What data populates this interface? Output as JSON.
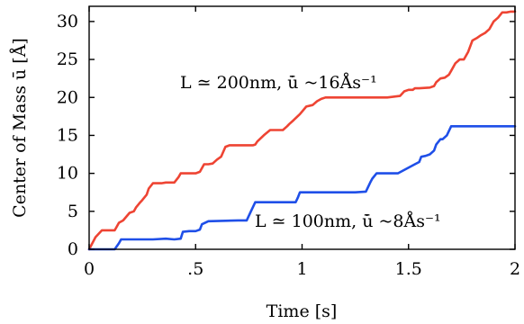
{
  "chart_data": {
    "type": "line",
    "xlabel": "Time [s]",
    "ylabel": "Center of Mass ū [Å]",
    "xlim": [
      0,
      2
    ],
    "ylim": [
      0,
      32
    ],
    "xticks": [
      {
        "value": 0,
        "label": "0"
      },
      {
        "value": 0.5,
        "label": ".5"
      },
      {
        "value": 1,
        "label": "1"
      },
      {
        "value": 1.5,
        "label": "1.5"
      },
      {
        "value": 2,
        "label": "2"
      }
    ],
    "yticks": [
      {
        "value": 0,
        "label": "0"
      },
      {
        "value": 5,
        "label": "5"
      },
      {
        "value": 10,
        "label": "10"
      },
      {
        "value": 15,
        "label": "15"
      },
      {
        "value": 20,
        "label": "20"
      },
      {
        "value": 25,
        "label": "25"
      },
      {
        "value": 30,
        "label": "30"
      }
    ],
    "grid": false,
    "series": [
      {
        "annotation": "L ≃ 200nm, u̇̄ ~16Ås⁻¹",
        "color": "#ee4433",
        "x": [
          0.0,
          0.03,
          0.06,
          0.12,
          0.14,
          0.16,
          0.19,
          0.21,
          0.22,
          0.24,
          0.25,
          0.27,
          0.28,
          0.3,
          0.32,
          0.34,
          0.36,
          0.4,
          0.42,
          0.43,
          0.45,
          0.5,
          0.52,
          0.54,
          0.56,
          0.58,
          0.6,
          0.62,
          0.64,
          0.66,
          0.68,
          0.75,
          0.77,
          0.78,
          0.79,
          0.82,
          0.85,
          0.91,
          0.93,
          0.94,
          0.96,
          0.99,
          1.02,
          1.05,
          1.07,
          1.09,
          1.11,
          1.13,
          1.2,
          1.3,
          1.4,
          1.46,
          1.48,
          1.5,
          1.52,
          1.53,
          1.55,
          1.6,
          1.62,
          1.63,
          1.65,
          1.67,
          1.69,
          1.7,
          1.72,
          1.74,
          1.76,
          1.78,
          1.8,
          1.82,
          1.84,
          1.86,
          1.88,
          1.9,
          1.92,
          1.94,
          1.96,
          1.98,
          2.0
        ],
        "y": [
          0.0,
          1.6,
          2.5,
          2.5,
          3.5,
          3.8,
          4.8,
          5.0,
          5.5,
          6.2,
          6.5,
          7.2,
          8.0,
          8.7,
          8.7,
          8.7,
          8.8,
          8.8,
          9.5,
          10.0,
          10.0,
          10.0,
          10.2,
          11.2,
          11.2,
          11.3,
          11.8,
          12.2,
          13.5,
          13.7,
          13.7,
          13.7,
          13.7,
          13.8,
          14.2,
          15.0,
          15.7,
          15.7,
          16.2,
          16.5,
          17.0,
          17.8,
          18.8,
          19.0,
          19.5,
          19.8,
          20.0,
          20.0,
          20.0,
          20.0,
          20.0,
          20.2,
          20.8,
          21.0,
          21.0,
          21.2,
          21.2,
          21.3,
          21.5,
          22.0,
          22.5,
          22.6,
          23.0,
          23.5,
          24.5,
          25.0,
          25.0,
          26.0,
          27.5,
          27.8,
          28.2,
          28.5,
          29.0,
          30.0,
          30.5,
          31.2,
          31.2,
          31.3,
          31.3
        ]
      },
      {
        "annotation": "L ≃ 100nm, u̇̄ ~8Ås⁻¹",
        "color": "#1f4fe8",
        "x": [
          0.0,
          0.12,
          0.14,
          0.15,
          0.3,
          0.36,
          0.4,
          0.43,
          0.44,
          0.47,
          0.5,
          0.52,
          0.53,
          0.56,
          0.7,
          0.74,
          0.76,
          0.78,
          0.82,
          0.9,
          0.97,
          0.98,
          0.99,
          1.04,
          1.1,
          1.25,
          1.3,
          1.32,
          1.33,
          1.35,
          1.42,
          1.45,
          1.53,
          1.55,
          1.56,
          1.58,
          1.6,
          1.62,
          1.63,
          1.65,
          1.66,
          1.68,
          1.7,
          1.72,
          1.8,
          1.9,
          2.0
        ],
        "y": [
          0.0,
          0.0,
          0.8,
          1.3,
          1.3,
          1.4,
          1.3,
          1.4,
          2.3,
          2.4,
          2.4,
          2.6,
          3.3,
          3.7,
          3.8,
          3.8,
          5.0,
          6.2,
          6.2,
          6.2,
          6.2,
          6.8,
          7.5,
          7.5,
          7.5,
          7.5,
          7.6,
          8.8,
          9.3,
          10.0,
          10.0,
          10.0,
          11.2,
          11.5,
          12.2,
          12.3,
          12.5,
          13.0,
          13.8,
          14.5,
          14.5,
          15.0,
          16.2,
          16.2,
          16.2,
          16.2,
          16.2
        ]
      }
    ]
  }
}
